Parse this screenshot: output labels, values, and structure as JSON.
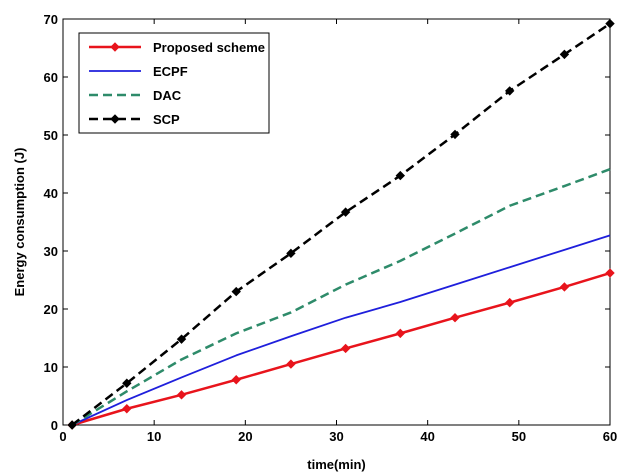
{
  "chart_data": {
    "type": "line",
    "xlabel": "time(min)",
    "ylabel": "Energy consumption (J)",
    "xlim": [
      0,
      60
    ],
    "ylim": [
      0,
      70
    ],
    "xticks": [
      0,
      10,
      20,
      30,
      40,
      50,
      60
    ],
    "yticks": [
      0,
      10,
      20,
      30,
      40,
      50,
      60,
      70
    ],
    "grid": false,
    "legend_position": "top-left",
    "series": [
      {
        "name": "Proposed scheme",
        "color": "#e8141c",
        "style": "solid-with-diamond-markers",
        "x": [
          1,
          7,
          13,
          19,
          25,
          31,
          37,
          43,
          49,
          55,
          60
        ],
        "y": [
          0,
          2.8,
          5.2,
          7.8,
          10.5,
          13.2,
          15.8,
          18.5,
          21.1,
          23.8,
          26.2
        ]
      },
      {
        "name": "ECPF",
        "color": "#1f1fdc",
        "style": "solid",
        "x": [
          1,
          7,
          13,
          19,
          25,
          31,
          37,
          43,
          49,
          55,
          60
        ],
        "y": [
          0,
          4.3,
          8.2,
          12.0,
          15.3,
          18.5,
          21.2,
          24.2,
          27.2,
          30.2,
          32.7
        ]
      },
      {
        "name": "DAC",
        "color": "#2e8b6a",
        "style": "dashed",
        "x": [
          1,
          7,
          13,
          19,
          25,
          31,
          37,
          43,
          49,
          55,
          60
        ],
        "y": [
          0,
          5.8,
          11.3,
          15.8,
          19.4,
          24.2,
          28.3,
          33.0,
          37.8,
          41.2,
          44.1
        ]
      },
      {
        "name": "SCP",
        "color": "#000000",
        "style": "dashed-with-diamond-markers",
        "x": [
          1,
          7,
          13,
          19,
          25,
          31,
          37,
          43,
          49,
          55,
          60
        ],
        "y": [
          0,
          7.2,
          14.8,
          23.0,
          29.6,
          36.7,
          43.0,
          50.1,
          57.6,
          63.9,
          69.2
        ]
      }
    ]
  }
}
